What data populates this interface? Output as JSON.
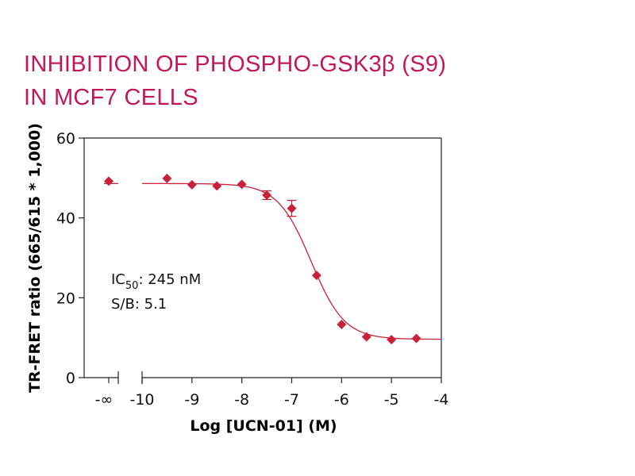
{
  "title_line1": "INHIBITION OF PHOSPHO-GSK3β (S9)",
  "title_line2": "IN MCF7 CELLS",
  "chart_data": {
    "type": "scatter",
    "title": "INHIBITION OF PHOSPHO-GSK3β (S9) IN MCF7 CELLS",
    "xlabel": "Log [UCN-01] (M)",
    "ylabel": "TR-FRET ratio (665/615 * 1,000)",
    "xlim": [
      -10,
      -4
    ],
    "ylim": [
      0,
      60
    ],
    "x_ticks": [
      "-10",
      "-9",
      "-8",
      "-7",
      "-6",
      "-5",
      "-4"
    ],
    "y_ticks": [
      "0",
      "20",
      "40",
      "60"
    ],
    "x_break_label": "-∞",
    "color": "#c8223a",
    "control_point": {
      "x": "-∞",
      "y": 49.2,
      "err": 0.3
    },
    "points": [
      {
        "x": -9.5,
        "y": 49.9,
        "err": 0.3
      },
      {
        "x": -9.0,
        "y": 48.3,
        "err": 0.3
      },
      {
        "x": -8.5,
        "y": 48.0,
        "err": 0.3
      },
      {
        "x": -8.0,
        "y": 48.4,
        "err": 0.3
      },
      {
        "x": -7.5,
        "y": 45.7,
        "err": 1.1
      },
      {
        "x": -7.0,
        "y": 42.4,
        "err": 2.0
      },
      {
        "x": -6.5,
        "y": 25.6,
        "err": 0.4
      },
      {
        "x": -6.0,
        "y": 13.3,
        "err": 0.3
      },
      {
        "x": -5.5,
        "y": 10.2,
        "err": 0.3
      },
      {
        "x": -5.0,
        "y": 9.5,
        "err": 0.3
      },
      {
        "x": -4.5,
        "y": 9.8,
        "err": 0.3
      }
    ],
    "fit": {
      "top": 48.6,
      "bottom": 9.6,
      "log_ic50": -6.61,
      "hill_slope": 1.3
    },
    "annotations": {
      "ic50_prefix": "IC",
      "ic50_sub": "50",
      "ic50_value": ": 245 nM",
      "sb": "S/B: 5.1"
    }
  }
}
